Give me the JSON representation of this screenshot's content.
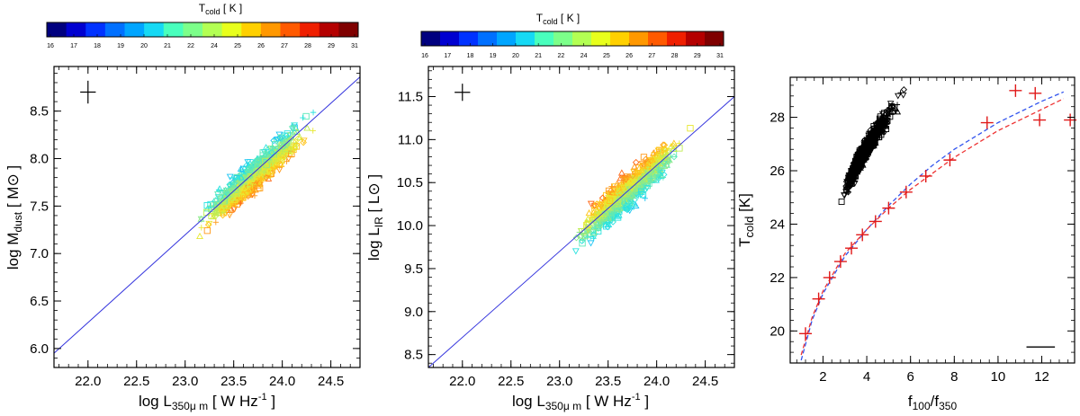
{
  "chart_data": [
    {
      "type": "scatter",
      "xlabel": {
        "main": "log L",
        "sub": "350μ m",
        "unit": " [ W Hz",
        "sup": "-1",
        "close": " ]"
      },
      "ylabel": {
        "main": "log M",
        "sub": "dust",
        "unit": " [ M",
        "sym": "⊙",
        "close": " ]"
      },
      "xlim": [
        21.65,
        24.8
      ],
      "ylim": [
        5.8,
        8.97
      ],
      "xticks": [
        "22.0",
        "22.5",
        "23.0",
        "23.5",
        "24.0",
        "24.5"
      ],
      "yticks": [
        "6.0",
        "6.5",
        "7.0",
        "7.5",
        "8.0",
        "8.5"
      ],
      "fit_line": {
        "color": "#3333dd",
        "points": [
          [
            21.65,
            5.95
          ],
          [
            24.8,
            8.86
          ]
        ]
      },
      "error_cross": {
        "x": 22.0,
        "y": 8.7,
        "dx": 0.08,
        "dy": 0.12
      },
      "colorbar": {
        "title": "T",
        "title_sub": "cold",
        "title_unit": " [ K ]",
        "tick_labels": [
          "16",
          "17",
          "18",
          "19",
          "20",
          "21",
          "22",
          "24",
          "25",
          "26",
          "27",
          "28",
          "29",
          "31"
        ]
      }
    },
    {
      "type": "scatter",
      "xlabel": {
        "main": "log L",
        "sub": "350μ m",
        "unit": " [ W Hz",
        "sup": "-1",
        "close": " ]"
      },
      "ylabel": {
        "main": "log L",
        "sub": "IR",
        "unit": " [ L",
        "sym": "⊙",
        "close": " ]"
      },
      "xlim": [
        21.65,
        24.8
      ],
      "ylim": [
        8.35,
        11.85
      ],
      "xticks": [
        "22.0",
        "22.5",
        "23.0",
        "23.5",
        "24.0",
        "24.5"
      ],
      "yticks": [
        "8.5",
        "9.0",
        "9.5",
        "10.0",
        "10.5",
        "11.0",
        "11.5"
      ],
      "fit_line": {
        "color": "#3333dd",
        "points": [
          [
            21.65,
            8.35
          ],
          [
            24.8,
            11.5
          ]
        ]
      },
      "error_cross": {
        "x": 22.0,
        "y": 11.55,
        "dx": 0.08,
        "dy": 0.1
      },
      "colorbar": {
        "title": "T",
        "title_sub": "cold",
        "title_unit": " [ K ]",
        "tick_labels": [
          "16",
          "17",
          "18",
          "19",
          "20",
          "21",
          "22",
          "24",
          "25",
          "26",
          "27",
          "28",
          "29",
          "31"
        ]
      }
    },
    {
      "type": "scatter",
      "xlabel": {
        "main": "f",
        "sub": "100",
        "mid": "/f",
        "sub2": "350"
      },
      "ylabel": {
        "main": "T",
        "sub": "cold",
        "unit": " [K]"
      },
      "xlim": [
        0.5,
        13.5
      ],
      "ylim": [
        18.8,
        29.5
      ],
      "xticks": [
        "2",
        "4",
        "6",
        "8",
        "10",
        "12"
      ],
      "yticks": [
        "20",
        "22",
        "24",
        "26",
        "28"
      ],
      "scale_bar": {
        "x0": 11.3,
        "x1": 12.6,
        "y": 19.4
      },
      "binned_points": [
        [
          1.2,
          19.9
        ],
        [
          1.8,
          21.2
        ],
        [
          2.3,
          22.0
        ],
        [
          2.8,
          22.6
        ],
        [
          3.3,
          23.1
        ],
        [
          3.8,
          23.6
        ],
        [
          4.4,
          24.1
        ],
        [
          5.0,
          24.6
        ],
        [
          5.8,
          25.2
        ],
        [
          6.7,
          25.8
        ],
        [
          7.8,
          26.4
        ],
        [
          9.5,
          27.8
        ],
        [
          10.8,
          29.0
        ],
        [
          11.7,
          28.9
        ],
        [
          11.9,
          27.9
        ],
        [
          13.3,
          27.9
        ]
      ],
      "curves": [
        {
          "color": "#3355ee",
          "points": [
            [
              1.0,
              18.9
            ],
            [
              1.5,
              20.4
            ],
            [
              2.0,
              21.4
            ],
            [
              3.0,
              22.8
            ],
            [
              4.0,
              23.8
            ],
            [
              5.0,
              24.7
            ],
            [
              6.0,
              25.5
            ],
            [
              7.0,
              26.2
            ],
            [
              8.0,
              26.8
            ],
            [
              9.0,
              27.3
            ],
            [
              10.0,
              27.8
            ],
            [
              11.0,
              28.2
            ],
            [
              12.0,
              28.6
            ],
            [
              13.0,
              28.95
            ]
          ]
        },
        {
          "color": "#ee3333",
          "points": [
            [
              1.0,
              19.1
            ],
            [
              1.5,
              20.5
            ],
            [
              2.0,
              21.5
            ],
            [
              3.0,
              22.9
            ],
            [
              4.0,
              23.8
            ],
            [
              5.0,
              24.6
            ],
            [
              6.0,
              25.3
            ],
            [
              7.0,
              25.9
            ],
            [
              8.0,
              26.5
            ],
            [
              9.0,
              27.0
            ],
            [
              10.0,
              27.5
            ],
            [
              11.0,
              27.9
            ],
            [
              12.0,
              28.3
            ],
            [
              13.0,
              28.7
            ]
          ]
        }
      ]
    }
  ]
}
